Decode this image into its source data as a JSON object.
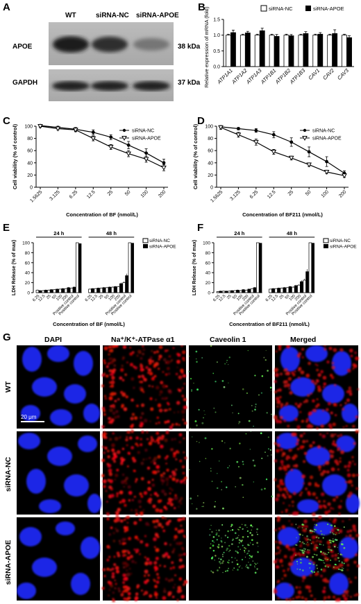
{
  "panels": {
    "A": {
      "label": "A",
      "lanes": [
        "WT",
        "siRNA-NC",
        "siRNA-APOE"
      ],
      "blots": [
        {
          "name": "APOE",
          "size": "38 kDa",
          "intensities": [
            0.95,
            0.8,
            0.25
          ]
        },
        {
          "name": "GAPDH",
          "size": "37 kDa",
          "intensities": [
            0.9,
            0.9,
            0.9
          ]
        }
      ]
    },
    "B": {
      "label": "B",
      "legend": [
        "siRNA-NC",
        "siRNA-APOE"
      ],
      "ylabel": "Relative expression of mRNA (fold)",
      "yticks": [
        "0.0",
        "0.5",
        "1.0",
        "1.5"
      ]
    },
    "C": {
      "label": "C",
      "legend": [
        "siRNA-NC",
        "siRNA-APOE"
      ]
    },
    "D": {
      "label": "D",
      "legend": [
        "siRNA-NC",
        "siRNA-APOE"
      ]
    },
    "E": {
      "label": "E",
      "legend": [
        "siRNA-NC",
        "siRNA-APOE"
      ],
      "groups": [
        "24 h",
        "48 h"
      ]
    },
    "F": {
      "label": "F",
      "legend": [
        "siRNA-NC",
        "siRNA-APOE"
      ],
      "groups": [
        "24 h",
        "48 h"
      ]
    },
    "G": {
      "label": "G",
      "columns": [
        "DAPI",
        "Na⁺/K⁺-ATPase α1",
        "Caveolin 1",
        "Merged"
      ],
      "rows": [
        "WT",
        "siRNA-NC",
        "siRNA-APOE"
      ],
      "scalebar": "20 μm"
    }
  },
  "chart_data": [
    {
      "id": "B",
      "type": "bar",
      "ylabel": "Relative expression of mRNA (fold)",
      "ylim": [
        0,
        1.5
      ],
      "categories": [
        "ATP1A1",
        "ATP1A2",
        "ATP1A3",
        "ATP1B1",
        "ATP1B2",
        "ATP1B3",
        "CAV1",
        "CAV2",
        "CAV3"
      ],
      "series": [
        {
          "name": "siRNA-NC",
          "values": [
            1.0,
            1.0,
            1.0,
            1.0,
            1.0,
            1.0,
            1.0,
            1.0,
            1.0
          ],
          "errors": [
            0.03,
            0.03,
            0.03,
            0.03,
            0.03,
            0.03,
            0.03,
            0.03,
            0.03
          ],
          "color": "#ffffff"
        },
        {
          "name": "siRNA-APOE",
          "values": [
            1.08,
            1.07,
            1.14,
            0.96,
            0.98,
            1.05,
            1.03,
            1.05,
            0.92
          ],
          "errors": [
            0.08,
            0.05,
            0.08,
            0.06,
            0.04,
            0.06,
            0.05,
            0.12,
            0.06
          ],
          "color": "#000000"
        }
      ]
    },
    {
      "id": "C",
      "type": "line",
      "xlabel": "Concentration of BF (nmol/L)",
      "ylabel": "Cell viability (% of control)",
      "ylim": [
        0,
        100
      ],
      "yticks": [
        0,
        20,
        40,
        60,
        80,
        100
      ],
      "categories": [
        "1.5625",
        "3.125",
        "6.25",
        "12.5",
        "25",
        "50",
        "100",
        "200"
      ],
      "series": [
        {
          "name": "siRNA-NC",
          "marker": "circle",
          "values": [
            101,
            98,
            95,
            90,
            82,
            69,
            56,
            40
          ],
          "errors": [
            2,
            2,
            3,
            4,
            4,
            6,
            7,
            6
          ]
        },
        {
          "name": "siRNA-APOE",
          "marker": "triangle-down",
          "values": [
            100,
            96,
            94,
            80,
            66,
            55,
            46,
            32
          ],
          "errors": [
            2,
            2,
            3,
            4,
            4,
            5,
            5,
            5
          ]
        }
      ]
    },
    {
      "id": "D",
      "type": "line",
      "xlabel": "Concentration of BF211 (nmol/L)",
      "ylabel": "Cell viability (% of control)",
      "ylim": [
        0,
        100
      ],
      "yticks": [
        0,
        20,
        40,
        60,
        80,
        100
      ],
      "categories": [
        "1.5625",
        "3.125",
        "6.25",
        "12.5",
        "25",
        "50",
        "100",
        "200"
      ],
      "series": [
        {
          "name": "siRNA-NC",
          "marker": "circle",
          "values": [
            99,
            96,
            93,
            86,
            74,
            58,
            42,
            23
          ],
          "errors": [
            2,
            2,
            3,
            5,
            7,
            8,
            8,
            4
          ]
        },
        {
          "name": "siRNA-APOE",
          "marker": "triangle-down",
          "values": [
            98,
            86,
            74,
            58,
            48,
            37,
            25,
            19
          ],
          "errors": [
            3,
            4,
            5,
            4,
            3,
            3,
            3,
            3
          ]
        }
      ]
    },
    {
      "id": "E",
      "type": "bar",
      "xlabel": "Concentration of BF (nmol/L)",
      "ylabel": "LDH Release (% of max)",
      "yticks": [
        0,
        20,
        40,
        60,
        80,
        100
      ],
      "categories": [
        "6.25",
        "12.5",
        "25",
        "50",
        "100",
        "200",
        "Positive control",
        "Positive control"
      ],
      "groups": [
        {
          "name": "24 h",
          "series": [
            {
              "name": "siRNA-NC",
              "values": [
                5,
                4,
                5,
                6,
                7,
                8,
                9,
                100
              ]
            },
            {
              "name": "siRNA-APOE",
              "values": [
                4,
                5,
                6,
                7,
                8,
                10,
                11,
                98
              ]
            }
          ]
        },
        {
          "name": "48 h",
          "series": [
            {
              "name": "siRNA-NC",
              "values": [
                7,
                8,
                9,
                10,
                11,
                12,
                20,
                100
              ]
            },
            {
              "name": "siRNA-APOE",
              "values": [
                8,
                9,
                10,
                11,
                12,
                18,
                34,
                99
              ]
            }
          ]
        }
      ]
    },
    {
      "id": "F",
      "type": "bar",
      "xlabel": "Concentration of BF211 (nmol/L)",
      "ylabel": "LDH Release (% of max)",
      "yticks": [
        0,
        20,
        40,
        60,
        80,
        100
      ],
      "categories": [
        "6.25",
        "12.5",
        "25",
        "50",
        "100",
        "200",
        "Positive control",
        "Positive control"
      ],
      "groups": [
        {
          "name": "24 h",
          "series": [
            {
              "name": "siRNA-NC",
              "values": [
                2,
                3,
                3,
                4,
                4,
                5,
                8,
                100
              ]
            },
            {
              "name": "siRNA-APOE",
              "values": [
                3,
                3,
                4,
                5,
                6,
                7,
                10,
                99
              ]
            }
          ]
        },
        {
          "name": "48 h",
          "series": [
            {
              "name": "siRNA-NC",
              "values": [
                7,
                8,
                9,
                10,
                11,
                15,
                25,
                100
              ]
            },
            {
              "name": "siRNA-APOE",
              "values": [
                8,
                9,
                10,
                12,
                14,
                22,
                42,
                99
              ]
            }
          ]
        }
      ]
    }
  ]
}
